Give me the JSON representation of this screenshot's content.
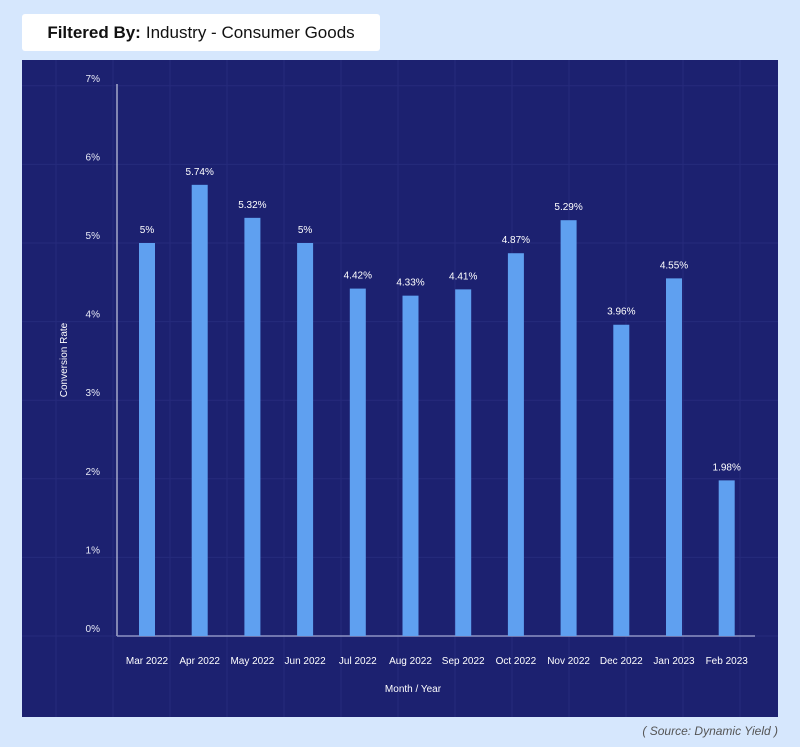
{
  "filter": {
    "label": "Filtered By:",
    "value": "Industry - Consumer Goods"
  },
  "source": "( Source: Dynamic Yield )",
  "colors": {
    "background": "#d6e7fd",
    "panel": "#1c2170",
    "bar": "#5fa0f0"
  },
  "chart_data": {
    "type": "bar",
    "xlabel": "Month / Year",
    "ylabel": "Conversion Rate",
    "ylim": [
      0,
      7
    ],
    "yticks": [
      "0%",
      "1%",
      "2%",
      "3%",
      "4%",
      "5%",
      "6%",
      "7%"
    ],
    "grid": true,
    "categories": [
      "Mar 2022",
      "Apr 2022",
      "May 2022",
      "Jun 2022",
      "Jul 2022",
      "Aug 2022",
      "Sep 2022",
      "Oct 2022",
      "Nov 2022",
      "Dec 2022",
      "Jan 2023",
      "Feb 2023"
    ],
    "values": [
      5,
      5.74,
      5.32,
      5,
      4.42,
      4.33,
      4.41,
      4.87,
      5.29,
      3.96,
      4.55,
      1.98
    ],
    "data_labels": [
      "5%",
      "5.74%",
      "5.32%",
      "5%",
      "4.42%",
      "4.33%",
      "4.41%",
      "4.87%",
      "5.29%",
      "3.96%",
      "4.55%",
      "1.98%"
    ]
  }
}
